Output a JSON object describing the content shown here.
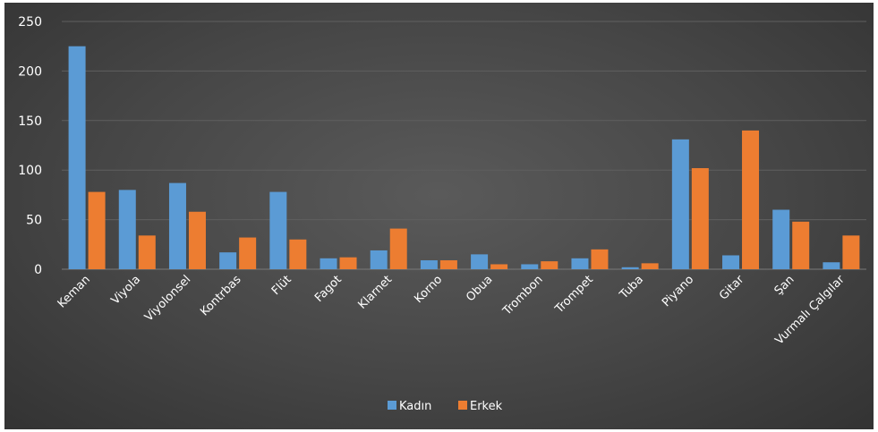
{
  "chart_data": {
    "type": "bar",
    "categories": [
      "Keman",
      "Viyola",
      "Viyolonsel",
      "Kontrbas",
      "Flüt",
      "Fagot",
      "Klarnet",
      "Korno",
      "Obua",
      "Trombon",
      "Trompet",
      "Tuba",
      "Piyano",
      "Gitar",
      "Şan",
      "Vurmalı Çalgılar"
    ],
    "series": [
      {
        "name": "Kadın",
        "values": [
          225,
          80,
          87,
          17,
          78,
          11,
          19,
          9,
          15,
          5,
          11,
          2,
          131,
          14,
          60,
          7
        ],
        "color": "#5b9bd5"
      },
      {
        "name": "Erkek",
        "values": [
          78,
          34,
          58,
          32,
          30,
          12,
          41,
          9,
          5,
          8,
          20,
          6,
          102,
          140,
          48,
          34
        ],
        "color": "#ed7d31"
      }
    ],
    "ylim": [
      0,
      250
    ],
    "yticks": [
      "0",
      "50",
      "100",
      "150",
      "200",
      "250"
    ],
    "grid": true,
    "legend_position": "bottom",
    "title": "",
    "xlabel": "",
    "ylabel": ""
  }
}
